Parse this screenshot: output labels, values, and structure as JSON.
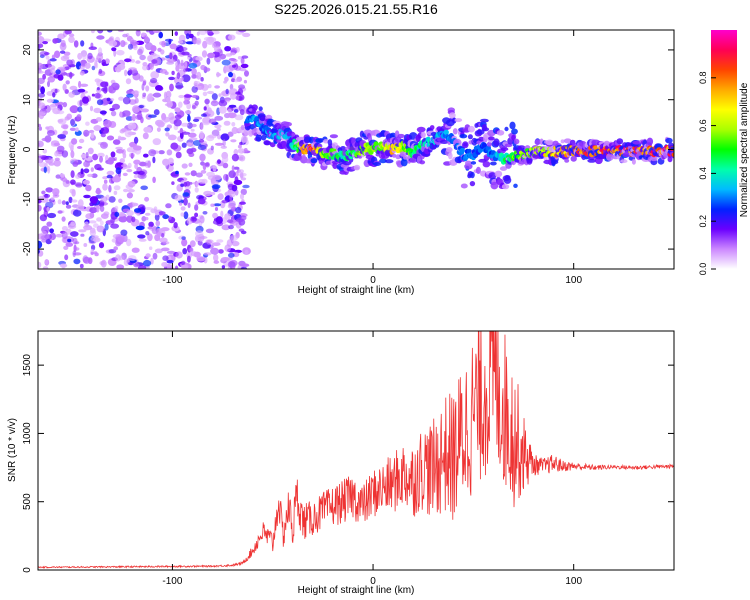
{
  "figure_title": "S225.2026.015.21.55.R16",
  "chart_data": [
    {
      "type": "heatmap",
      "title": "S225.2026.015.21.55.R16",
      "xlabel": "Height of straight line (km)",
      "ylabel": "Frequency (Hz)",
      "xlim": [
        -167,
        150
      ],
      "ylim": [
        -24,
        24
      ],
      "xticks": [
        -100,
        0,
        100
      ],
      "yticks": [
        -20,
        -10,
        0,
        10,
        20
      ],
      "grid": false,
      "regions": [
        {
          "x_from": -167,
          "x_to": -63,
          "description_values": "noise",
          "frequency_range": [
            -24,
            24
          ],
          "amplitude_range": [
            0.0,
            0.25
          ]
        },
        {
          "x_from": -63,
          "x_to": 150,
          "ridge_amplitude_range": [
            0.3,
            1.0
          ]
        }
      ],
      "ridge": {
        "x": [
          -63,
          -58,
          -55,
          -50,
          -45,
          -42,
          -38,
          -35,
          -30,
          -25,
          -20,
          -15,
          -10,
          -5,
          0,
          5,
          10,
          15,
          20,
          25,
          30,
          35,
          40,
          45,
          50,
          55,
          60,
          65,
          70,
          75,
          80,
          90,
          100,
          110,
          120,
          130,
          140,
          150
        ],
        "y": [
          6,
          6,
          4.5,
          3,
          3.5,
          2,
          0.5,
          0.2,
          0,
          -0.5,
          -1,
          -1.5,
          -0.5,
          0,
          0.3,
          0.5,
          0,
          0.5,
          -0.5,
          1,
          1.5,
          3,
          2,
          -1,
          -1,
          1,
          -1,
          -2,
          -1.5,
          -1,
          -0.5,
          -0.5,
          -0.3,
          -0.3,
          -0.3,
          -0.3,
          -0.3,
          -0.3
        ],
        "amplitude": [
          0.3,
          0.35,
          0.3,
          0.35,
          0.4,
          0.35,
          0.5,
          0.75,
          0.9,
          0.6,
          0.55,
          0.45,
          0.5,
          0.6,
          0.55,
          0.6,
          0.75,
          0.65,
          0.5,
          0.45,
          0.4,
          0.35,
          0.3,
          0.3,
          0.3,
          0.3,
          0.3,
          0.45,
          0.55,
          0.6,
          0.6,
          0.75,
          0.85,
          0.9,
          0.9,
          0.9,
          0.9,
          0.9
        ]
      }
    },
    {
      "type": "line",
      "xlabel": "Height of straight line (km)",
      "ylabel": "SNR (10 * v/v)",
      "xlim": [
        -167,
        150
      ],
      "ylim": [
        0,
        1750
      ],
      "xticks": [
        -100,
        0,
        100
      ],
      "yticks": [
        0,
        500,
        1000,
        1500
      ],
      "grid": false,
      "series": [
        {
          "color": "#ee3333",
          "x": [
            -167,
            -140,
            -110,
            -80,
            -70,
            -65,
            -60,
            -55,
            -50,
            -47,
            -45,
            -42,
            -40,
            -38,
            -35,
            -30,
            -25,
            -20,
            -15,
            -10,
            -5,
            0,
            5,
            10,
            15,
            20,
            25,
            30,
            35,
            40,
            45,
            50,
            55,
            60,
            65,
            70,
            75,
            80,
            85,
            90,
            95,
            100,
            110,
            120,
            130,
            140,
            150
          ],
          "y": [
            20,
            22,
            25,
            28,
            35,
            50,
            140,
            280,
            200,
            500,
            260,
            460,
            300,
            560,
            350,
            380,
            430,
            470,
            500,
            540,
            470,
            560,
            600,
            630,
            700,
            660,
            760,
            720,
            850,
            820,
            1000,
            1150,
            1300,
            1450,
            1200,
            1000,
            850,
            770,
            760,
            780,
            760,
            760,
            750,
            755,
            750,
            755,
            760
          ],
          "envelope_amplitude": [
            5,
            5,
            6,
            6,
            8,
            10,
            40,
            80,
            90,
            120,
            130,
            140,
            150,
            160,
            140,
            130,
            140,
            150,
            160,
            170,
            160,
            180,
            200,
            220,
            250,
            280,
            320,
            380,
            430,
            500,
            550,
            600,
            650,
            700,
            600,
            550,
            300,
            80,
            60,
            70,
            40,
            30,
            20,
            15,
            15,
            15,
            15
          ]
        }
      ]
    }
  ],
  "colorbar": {
    "label": "Normalized spectral amplitude",
    "range": [
      0.0,
      1.0
    ],
    "ticks": [
      "0.0",
      "0.2",
      "0.4",
      "0.6",
      "0.8"
    ],
    "colors": [
      "#ffffff",
      "#cc88ff",
      "#6a00ff",
      "#0022ff",
      "#00bbff",
      "#00ffaa",
      "#00ff00",
      "#aaff00",
      "#ffff00",
      "#ffaa00",
      "#ff4400",
      "#ff0055",
      "#ff00cc"
    ]
  }
}
